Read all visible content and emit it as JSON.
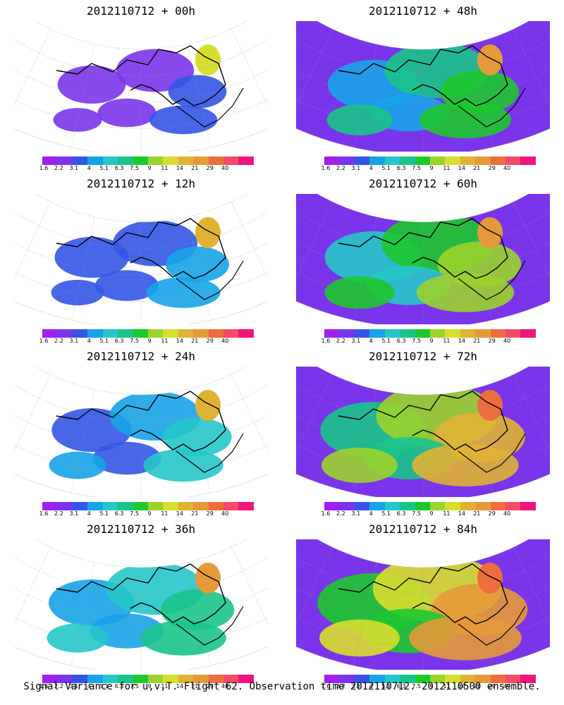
{
  "panels": [
    {
      "title": "2012110712 + 00h",
      "intensity": 0.15
    },
    {
      "title": "2012110712 + 48h",
      "intensity": 0.55
    },
    {
      "title": "2012110712 + 12h",
      "intensity": 0.25
    },
    {
      "title": "2012110712 + 60h",
      "intensity": 0.65
    },
    {
      "title": "2012110712 + 24h",
      "intensity": 0.35
    },
    {
      "title": "2012110712 + 72h",
      "intensity": 0.8
    },
    {
      "title": "2012110712 + 36h",
      "intensity": 0.45
    },
    {
      "title": "2012110712 + 84h",
      "intensity": 0.9
    }
  ],
  "colorbar": {
    "labels": [
      "1.6",
      "2.2",
      "3.1",
      "4",
      "5.1",
      "6.3",
      "7.5",
      "9",
      "11",
      "14",
      "21",
      "29",
      "40"
    ],
    "colors": [
      "#a020f0",
      "#7a35ea",
      "#3455e6",
      "#17a3e8",
      "#25c7c9",
      "#19c48a",
      "#1dc82d",
      "#9ad32c",
      "#d8de2e",
      "#e0b234",
      "#e59a39",
      "#ee6d3e",
      "#f24b6b",
      "#f0147e"
    ]
  },
  "footer": "Signal Variance for u,v,T. Flight 62. Observation time 2012110712. 2012110500 ensemble."
}
